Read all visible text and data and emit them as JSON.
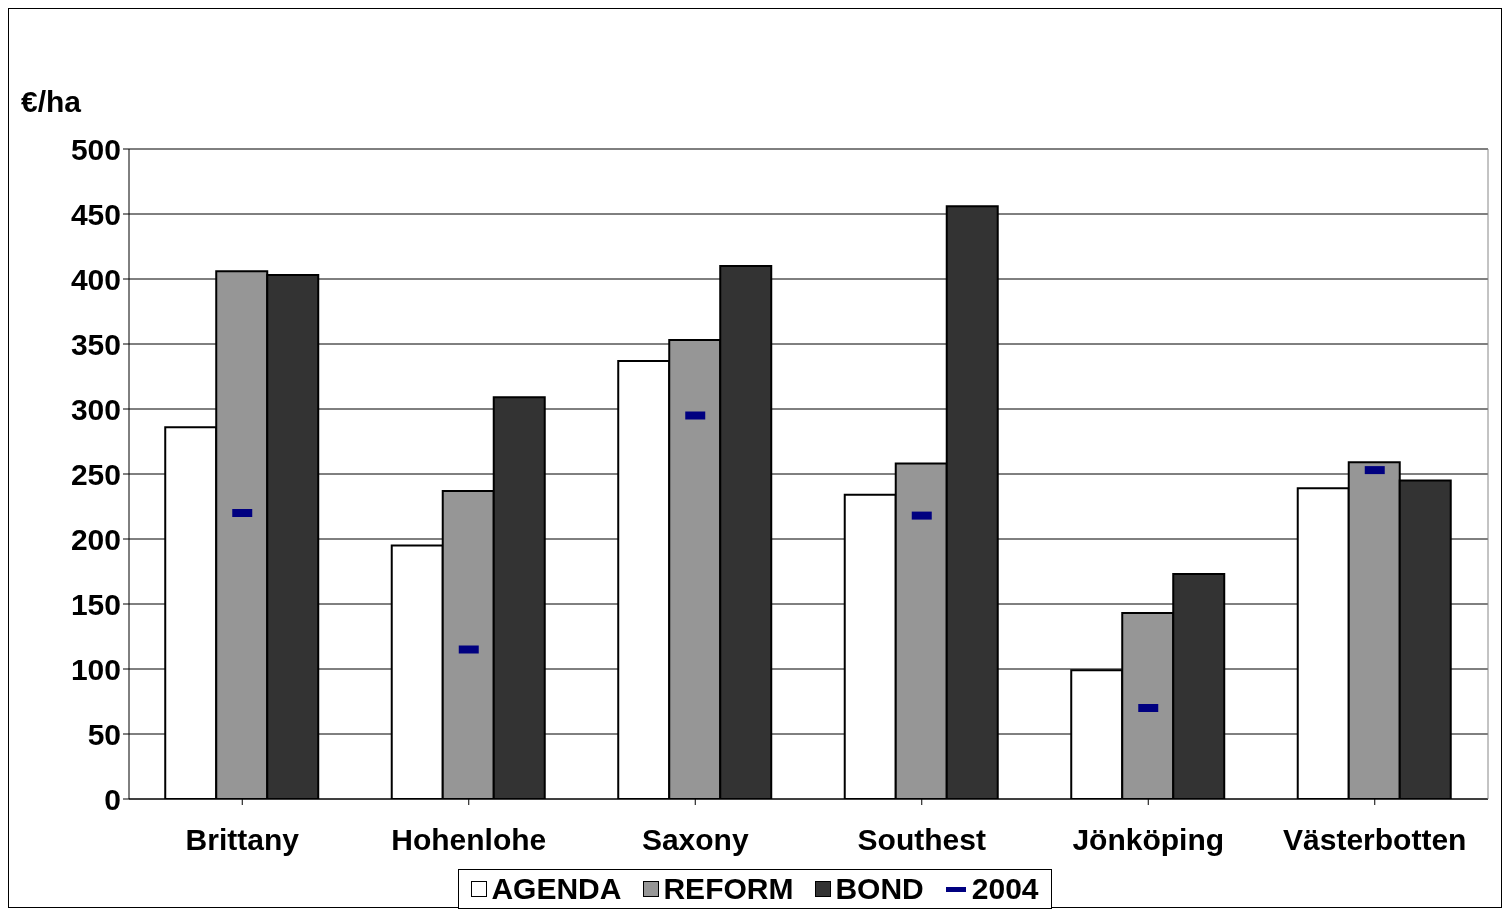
{
  "chart_data": {
    "type": "bar",
    "ylabel": "€/ha",
    "categories": [
      "Brittany",
      "Hohenlohe",
      "Saxony",
      "Southest",
      "Jönköping",
      "Västerbotten"
    ],
    "series": [
      {
        "name": "AGENDA",
        "color": "#ffffff",
        "values": [
          286,
          195,
          337,
          234,
          99,
          239
        ]
      },
      {
        "name": "REFORM",
        "color": "#969696",
        "values": [
          406,
          237,
          353,
          258,
          143,
          259
        ]
      },
      {
        "name": "BOND",
        "color": "#333333",
        "values": [
          403,
          309,
          410,
          456,
          173,
          245
        ]
      },
      {
        "name": "2004",
        "type": "scatter",
        "color": "#000080",
        "values": [
          220,
          115,
          295,
          218,
          70,
          253
        ]
      }
    ],
    "ylim": [
      0,
      500
    ],
    "yticks": [
      0,
      50,
      100,
      150,
      200,
      250,
      300,
      350,
      400,
      450,
      500
    ],
    "grid": "y",
    "legend": "bottom"
  }
}
